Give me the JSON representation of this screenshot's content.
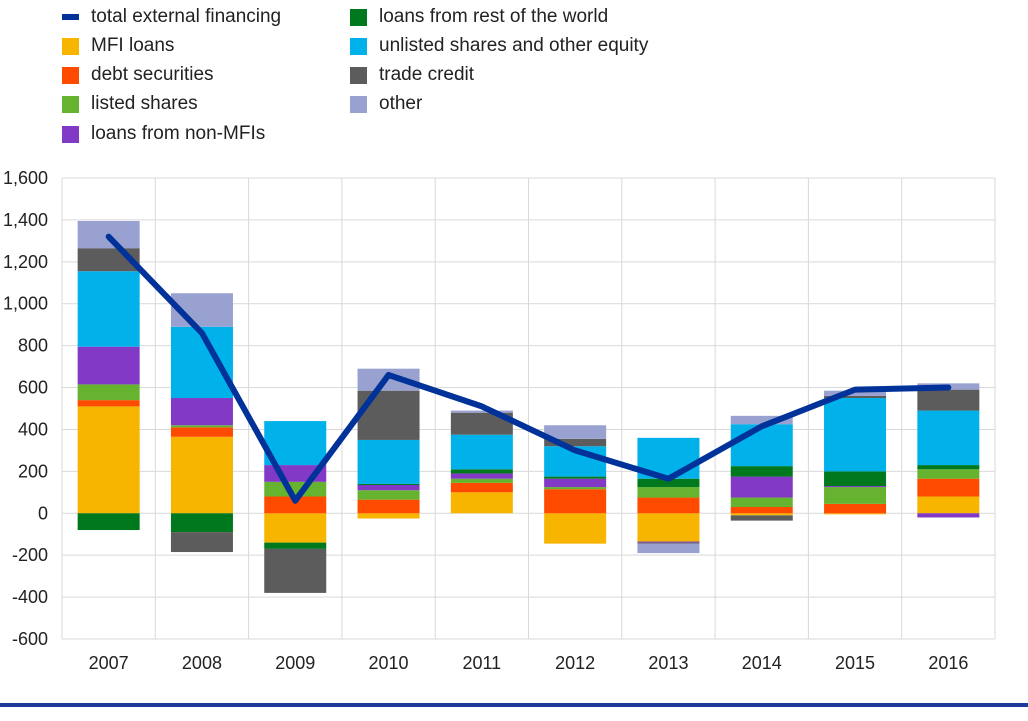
{
  "chart_data": {
    "type": "bar",
    "stacked": true,
    "categories": [
      "2007",
      "2008",
      "2009",
      "2010",
      "2011",
      "2012",
      "2013",
      "2014",
      "2015",
      "2016"
    ],
    "ylim": [
      -600,
      1600
    ],
    "yticks": [
      -600,
      -400,
      -200,
      0,
      200,
      400,
      600,
      800,
      1000,
      1200,
      1400,
      1600
    ],
    "ytick_labels": [
      "-600",
      "-400",
      "-200",
      "0",
      "200",
      "400",
      "600",
      "800",
      "1,000",
      "1,200",
      "1,400",
      "1,600"
    ],
    "grid": true,
    "legend_position": "top",
    "series": [
      {
        "name": "MFI loans",
        "color": "#f7b500",
        "values": [
          510,
          365,
          -140,
          -25,
          100,
          -145,
          -135,
          -10,
          -5,
          80
        ]
      },
      {
        "name": "debt securities",
        "color": "#ff4b00",
        "values": [
          30,
          45,
          80,
          65,
          45,
          115,
          75,
          30,
          45,
          85
        ]
      },
      {
        "name": "listed shares",
        "color": "#65b32e",
        "values": [
          75,
          10,
          70,
          45,
          20,
          10,
          50,
          45,
          80,
          45
        ]
      },
      {
        "name": "loans from non-MFIs",
        "color": "#8139c6",
        "values": [
          180,
          130,
          80,
          25,
          25,
          40,
          -5,
          100,
          5,
          -20
        ]
      },
      {
        "name": "loans from rest of the world",
        "color": "#00781e",
        "values": [
          -80,
          -90,
          -30,
          5,
          20,
          10,
          40,
          50,
          70,
          20
        ]
      },
      {
        "name": "unlisted shares and other equity",
        "color": "#00b1ea",
        "values": [
          360,
          340,
          210,
          210,
          165,
          145,
          195,
          200,
          350,
          260
        ]
      },
      {
        "name": "trade credit",
        "color": "#5c5c5c",
        "values": [
          110,
          -95,
          -210,
          235,
          105,
          35,
          -5,
          -25,
          10,
          100
        ]
      },
      {
        "name": "other",
        "color": "#98a1d0",
        "values": [
          130,
          160,
          0,
          105,
          10,
          65,
          -45,
          40,
          25,
          30
        ]
      }
    ],
    "line_series": {
      "name": "total external financing",
      "color": "#003299",
      "values": [
        1320,
        860,
        60,
        660,
        510,
        300,
        165,
        415,
        590,
        600
      ]
    }
  },
  "legend_items": [
    {
      "label": "total external financing",
      "color": "#003299",
      "kind": "line"
    },
    {
      "label": "MFI loans",
      "color": "#f7b500",
      "kind": "box"
    },
    {
      "label": "debt securities",
      "color": "#ff4b00",
      "kind": "box"
    },
    {
      "label": "listed shares",
      "color": "#65b32e",
      "kind": "box"
    },
    {
      "label": "loans from non-MFIs",
      "color": "#8139c6",
      "kind": "box"
    },
    {
      "label": "loans from rest of the world",
      "color": "#00781e",
      "kind": "box"
    },
    {
      "label": "unlisted shares and other equity",
      "color": "#00b1ea",
      "kind": "box"
    },
    {
      "label": "trade credit",
      "color": "#5c5c5c",
      "kind": "box"
    },
    {
      "label": "other",
      "color": "#98a1d0",
      "kind": "box"
    }
  ]
}
